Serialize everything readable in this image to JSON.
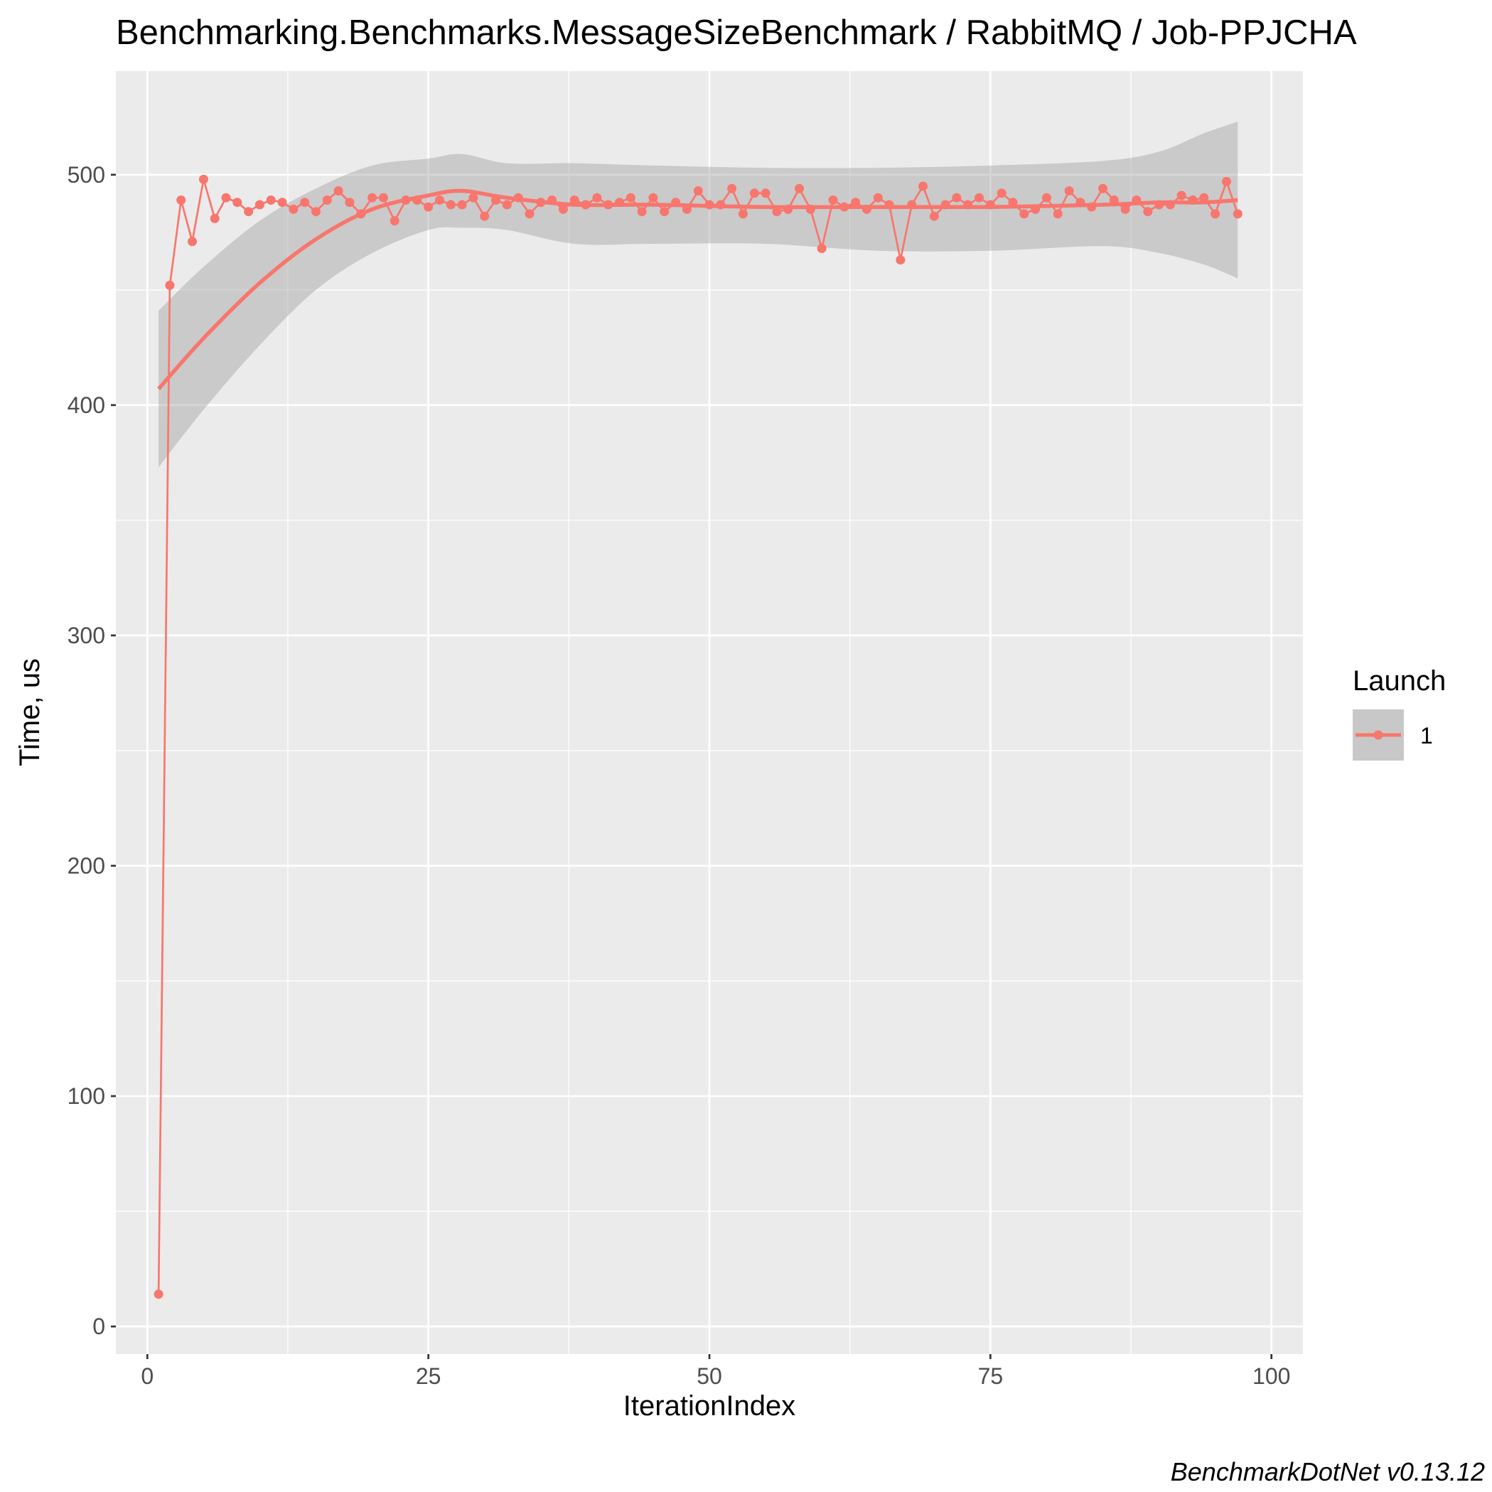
{
  "chart_data": {
    "type": "line",
    "title": "Benchmarking.Benchmarks.MessageSizeBenchmark / RabbitMQ / Job-PPJCHA",
    "xlabel": "IterationIndex",
    "ylabel": "Time, us",
    "caption": "BenchmarkDotNet v0.13.12",
    "xlim": [
      -2.8,
      102.8
    ],
    "ylim": [
      -12,
      545
    ],
    "x_ticks": [
      0,
      25,
      50,
      75,
      100
    ],
    "y_ticks": [
      0,
      100,
      200,
      300,
      400,
      500
    ],
    "grid": true,
    "legend": {
      "title": "Launch",
      "position": "right",
      "entries": [
        "1"
      ]
    },
    "series": [
      {
        "name": "1",
        "color": "#F8766D",
        "x": [
          1,
          2,
          3,
          4,
          5,
          6,
          7,
          8,
          9,
          10,
          11,
          12,
          13,
          14,
          15,
          16,
          17,
          18,
          19,
          20,
          21,
          22,
          23,
          24,
          25,
          26,
          27,
          28,
          29,
          30,
          31,
          32,
          33,
          34,
          35,
          36,
          37,
          38,
          39,
          40,
          41,
          42,
          43,
          44,
          45,
          46,
          47,
          48,
          49,
          50,
          51,
          52,
          53,
          54,
          55,
          56,
          57,
          58,
          59,
          60,
          61,
          62,
          63,
          64,
          65,
          66,
          67,
          68,
          69,
          70,
          71,
          72,
          73,
          74,
          75,
          76,
          77,
          78,
          79,
          80,
          81,
          82,
          83,
          84,
          85,
          86,
          87,
          88,
          89,
          90,
          91,
          92,
          93,
          94,
          95,
          96,
          97
        ],
        "values": [
          14,
          452,
          489,
          471,
          498,
          481,
          490,
          488,
          484,
          487,
          489,
          488,
          485,
          488,
          484,
          489,
          493,
          488,
          483,
          490,
          490,
          480,
          489,
          489,
          486,
          489,
          487,
          487,
          490,
          482,
          489,
          487,
          490,
          483,
          488,
          489,
          485,
          489,
          487,
          490,
          487,
          488,
          490,
          484,
          490,
          484,
          488,
          485,
          493,
          487,
          487,
          494,
          483,
          492,
          492,
          484,
          485,
          494,
          485,
          468,
          489,
          486,
          488,
          485,
          490,
          487,
          463,
          487,
          495,
          482,
          487,
          490,
          487,
          490,
          487,
          492,
          488,
          483,
          485,
          490,
          483,
          493,
          488,
          486,
          494,
          489,
          485,
          489,
          484,
          487,
          487,
          491,
          489,
          490,
          483,
          497,
          483
        ]
      }
    ],
    "smooth": {
      "x": [
        1,
        5,
        10,
        15,
        20,
        25,
        28,
        32,
        38,
        45,
        55,
        65,
        75,
        85,
        90,
        94,
        97
      ],
      "fit": [
        407,
        429,
        453,
        472,
        485,
        491,
        493,
        490,
        487,
        487,
        486,
        486,
        486,
        487,
        488,
        488,
        489
      ],
      "lower": [
        373,
        398,
        426,
        450,
        466,
        476,
        477,
        476,
        470,
        470,
        470,
        467,
        467,
        469,
        466,
        461,
        455
      ],
      "upper": [
        441,
        460,
        480,
        494,
        504,
        507,
        509,
        505,
        505,
        504,
        503,
        503,
        504,
        506,
        510,
        518,
        523
      ]
    }
  }
}
